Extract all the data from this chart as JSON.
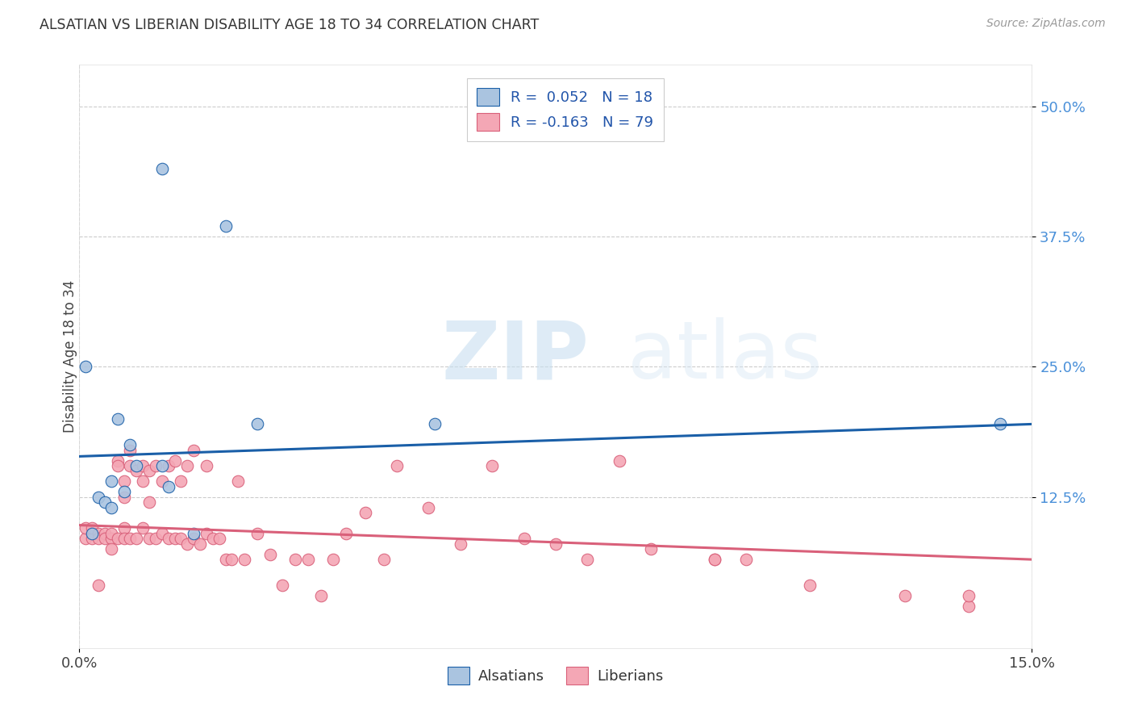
{
  "title": "ALSATIAN VS LIBERIAN DISABILITY AGE 18 TO 34 CORRELATION CHART",
  "source": "Source: ZipAtlas.com",
  "ylabel": "Disability Age 18 to 34",
  "xlim": [
    0.0,
    0.15
  ],
  "ylim": [
    -0.02,
    0.54
  ],
  "xtick_labels": [
    "0.0%",
    "15.0%"
  ],
  "xtick_vals": [
    0.0,
    0.15
  ],
  "ytick_labels": [
    "12.5%",
    "25.0%",
    "37.5%",
    "50.0%"
  ],
  "ytick_vals": [
    0.125,
    0.25,
    0.375,
    0.5
  ],
  "alsatian_color": "#aac4e0",
  "liberian_color": "#f4a7b5",
  "alsatian_line_color": "#1a5fa8",
  "liberian_line_color": "#d9607a",
  "alsatian_R": 0.052,
  "alsatian_N": 18,
  "liberian_R": -0.163,
  "liberian_N": 79,
  "background_color": "#ffffff",
  "watermark_zip": "ZIP",
  "watermark_atlas": "atlas",
  "alsatian_x": [
    0.013,
    0.023,
    0.001,
    0.006,
    0.008,
    0.009,
    0.013,
    0.005,
    0.014,
    0.007,
    0.003,
    0.004,
    0.005,
    0.145,
    0.028,
    0.056,
    0.002,
    0.018
  ],
  "alsatian_y": [
    0.44,
    0.385,
    0.25,
    0.2,
    0.175,
    0.155,
    0.155,
    0.14,
    0.135,
    0.13,
    0.125,
    0.12,
    0.115,
    0.195,
    0.195,
    0.195,
    0.09,
    0.09
  ],
  "liberian_x": [
    0.001,
    0.001,
    0.002,
    0.002,
    0.003,
    0.003,
    0.003,
    0.004,
    0.004,
    0.005,
    0.005,
    0.005,
    0.006,
    0.006,
    0.006,
    0.007,
    0.007,
    0.007,
    0.007,
    0.008,
    0.008,
    0.008,
    0.009,
    0.009,
    0.01,
    0.01,
    0.01,
    0.011,
    0.011,
    0.011,
    0.012,
    0.012,
    0.013,
    0.013,
    0.014,
    0.014,
    0.015,
    0.015,
    0.016,
    0.016,
    0.017,
    0.017,
    0.018,
    0.018,
    0.019,
    0.02,
    0.02,
    0.021,
    0.022,
    0.023,
    0.024,
    0.025,
    0.026,
    0.028,
    0.03,
    0.032,
    0.034,
    0.036,
    0.038,
    0.04,
    0.042,
    0.045,
    0.048,
    0.05,
    0.055,
    0.06,
    0.065,
    0.07,
    0.075,
    0.08,
    0.085,
    0.09,
    0.1,
    0.1,
    0.105,
    0.115,
    0.13,
    0.14,
    0.14
  ],
  "liberian_y": [
    0.085,
    0.095,
    0.085,
    0.095,
    0.09,
    0.085,
    0.04,
    0.09,
    0.085,
    0.085,
    0.09,
    0.075,
    0.16,
    0.155,
    0.085,
    0.14,
    0.125,
    0.095,
    0.085,
    0.17,
    0.155,
    0.085,
    0.15,
    0.085,
    0.155,
    0.14,
    0.095,
    0.15,
    0.12,
    0.085,
    0.085,
    0.155,
    0.14,
    0.09,
    0.155,
    0.085,
    0.16,
    0.085,
    0.14,
    0.085,
    0.155,
    0.08,
    0.17,
    0.085,
    0.08,
    0.155,
    0.09,
    0.085,
    0.085,
    0.065,
    0.065,
    0.14,
    0.065,
    0.09,
    0.07,
    0.04,
    0.065,
    0.065,
    0.03,
    0.065,
    0.09,
    0.11,
    0.065,
    0.155,
    0.115,
    0.08,
    0.155,
    0.085,
    0.08,
    0.065,
    0.16,
    0.075,
    0.065,
    0.065,
    0.065,
    0.04,
    0.03,
    0.02,
    0.03
  ],
  "als_trend_x": [
    0.0,
    0.15
  ],
  "als_trend_y": [
    0.164,
    0.195
  ],
  "lib_trend_x": [
    0.0,
    0.15
  ],
  "lib_trend_y": [
    0.098,
    0.065
  ]
}
